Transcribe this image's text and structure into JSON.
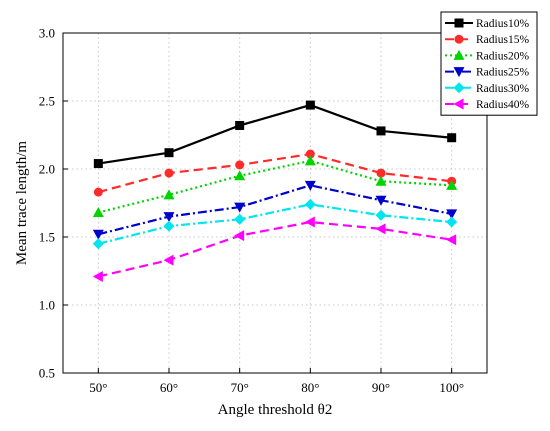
{
  "chart_data": {
    "type": "line",
    "title": "",
    "xlabel": "Angle threshold  θ2",
    "ylabel": "Mean trace length/m",
    "x_tick_labels": [
      "50°",
      "60°",
      "70°",
      "80°",
      "90°",
      "100°"
    ],
    "x": [
      50,
      60,
      70,
      80,
      90,
      100
    ],
    "xlim": [
      45,
      105
    ],
    "ylim": [
      0.5,
      3.0
    ],
    "y_ticks": [
      0.5,
      1.0,
      1.5,
      2.0,
      2.5,
      3.0
    ],
    "y_tick_labels": [
      "0.5",
      "1.0",
      "1.5",
      "2.0",
      "2.5",
      "3.0"
    ],
    "grid": true,
    "legend_position": "top-right",
    "series": [
      {
        "name": "Radius10%",
        "values": [
          2.04,
          2.12,
          2.32,
          2.47,
          2.28,
          2.23
        ],
        "color": "#000000",
        "marker": "square",
        "dash": "solid"
      },
      {
        "name": "Radius15%",
        "values": [
          1.83,
          1.97,
          2.03,
          2.11,
          1.97,
          1.91
        ],
        "color": "#ff2a2a",
        "marker": "circle",
        "dash": "dash"
      },
      {
        "name": "Radius20%",
        "values": [
          1.68,
          1.81,
          1.95,
          2.06,
          1.91,
          1.88
        ],
        "color": "#00d400",
        "marker": "triangle-up",
        "dash": "dot"
      },
      {
        "name": "Radius25%",
        "values": [
          1.52,
          1.65,
          1.72,
          1.88,
          1.77,
          1.67
        ],
        "color": "#0000cc",
        "marker": "triangle-down",
        "dash": "dashdot"
      },
      {
        "name": "Radius30%",
        "values": [
          1.45,
          1.58,
          1.63,
          1.74,
          1.66,
          1.61
        ],
        "color": "#00e5ee",
        "marker": "diamond",
        "dash": "dashdot"
      },
      {
        "name": "Radius40%",
        "values": [
          1.21,
          1.33,
          1.51,
          1.61,
          1.56,
          1.48
        ],
        "color": "#ff00ff",
        "marker": "triangle-left",
        "dash": "dash"
      }
    ]
  }
}
